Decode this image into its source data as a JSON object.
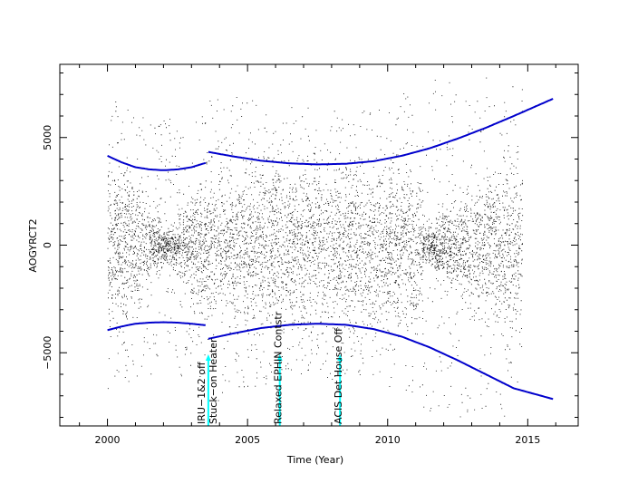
{
  "chart_data": {
    "type": "scatter",
    "title": "",
    "xlabel": "Time (Year)",
    "ylabel": "AOGYRCT2",
    "xlim": [
      1998.3,
      2016.8
    ],
    "ylim": [
      -8400,
      8400
    ],
    "x_ticks": [
      2000,
      2005,
      2010,
      2015
    ],
    "x_tick_labels": [
      "2000",
      "2005",
      "2010",
      "2015"
    ],
    "y_ticks": [
      -5000,
      0,
      5000
    ],
    "y_tick_labels": [
      "−5000",
      "0",
      "5000"
    ],
    "grid": false,
    "point_color": "#000000",
    "data_range": [
      2000.0,
      2014.8
    ],
    "envelope_color": "#0000cc",
    "envelope_upper": [
      {
        "x": [
          2000.0,
          2000.5,
          2001.0,
          2001.5,
          2002.0,
          2002.5,
          2003.0,
          2003.5
        ],
        "y": [
          4150,
          3850,
          3620,
          3520,
          3480,
          3520,
          3620,
          3820
        ]
      },
      {
        "x": [
          2003.6,
          2004.5,
          2005.5,
          2006.5,
          2007.5,
          2008.5,
          2009.5,
          2010.5,
          2011.5,
          2012.5,
          2013.5,
          2014.5,
          2015.9
        ],
        "y": [
          4330,
          4120,
          3920,
          3800,
          3750,
          3780,
          3900,
          4150,
          4500,
          4950,
          5450,
          6000,
          6800
        ]
      }
    ],
    "envelope_lower": [
      {
        "x": [
          2000.0,
          2000.5,
          2001.0,
          2001.5,
          2002.0,
          2002.5,
          2003.0,
          2003.5
        ],
        "y": [
          -3950,
          -3780,
          -3650,
          -3600,
          -3580,
          -3600,
          -3650,
          -3720
        ]
      },
      {
        "x": [
          2003.6,
          2004.5,
          2005.5,
          2006.5,
          2007.5,
          2008.5,
          2009.5,
          2010.5,
          2011.5,
          2012.5,
          2013.5,
          2014.5,
          2015.9
        ],
        "y": [
          -4350,
          -4100,
          -3850,
          -3700,
          -3650,
          -3700,
          -3900,
          -4250,
          -4750,
          -5350,
          -6000,
          -6650,
          -7150
        ]
      }
    ],
    "events": [
      {
        "x": 2003.6,
        "lines": [
          "IRU−1&2 off",
          "Stuck−on Heater"
        ]
      },
      {
        "x": 2006.15,
        "lines": [
          "Relaxed EPHIN Contstr"
        ]
      },
      {
        "x": 2008.3,
        "lines": [
          "ACIS Det House Off"
        ]
      }
    ],
    "event_arrow_color": "#00ffff"
  }
}
